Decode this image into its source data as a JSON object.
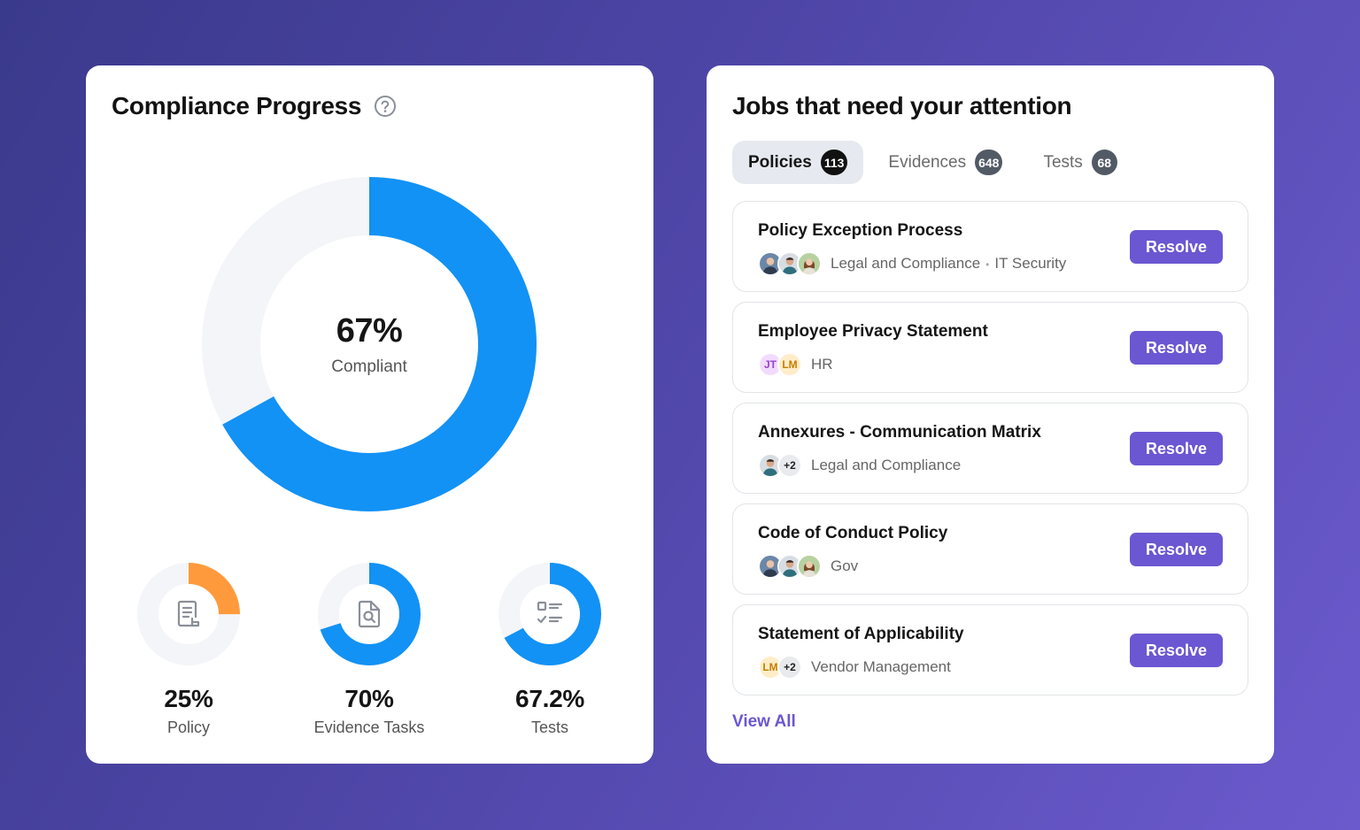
{
  "compliance": {
    "title": "Compliance Progress",
    "help_icon": "question-circle-icon",
    "main": {
      "value": "67%",
      "label": "Compliant",
      "fraction": 0.67,
      "color": "#1292f5",
      "track": "#f4f5f8"
    },
    "metrics": [
      {
        "value": "25%",
        "label": "Policy",
        "fraction": 0.25,
        "color": "#ff9a3c",
        "icon": "document-icon"
      },
      {
        "value": "70%",
        "label": "Evidence Tasks",
        "fraction": 0.7,
        "color": "#1292f5",
        "icon": "file-search-icon"
      },
      {
        "value": "67.2%",
        "label": "Tests",
        "fraction": 0.672,
        "color": "#1292f5",
        "icon": "checklist-icon"
      }
    ]
  },
  "jobs": {
    "title": "Jobs that need your attention",
    "tabs": [
      {
        "label": "Policies",
        "count": "113",
        "active": true
      },
      {
        "label": "Evidences",
        "count": "648",
        "active": false
      },
      {
        "label": "Tests",
        "count": "68",
        "active": false
      }
    ],
    "items": [
      {
        "title": "Policy Exception Process",
        "dept": "Legal and Compliance",
        "dept2": "IT Security",
        "separator": "•",
        "button": "Resolve"
      },
      {
        "title": "Employee Privacy Statement",
        "dept": "HR",
        "av1": "JT",
        "av2": "LM",
        "button": "Resolve"
      },
      {
        "title": "Annexures - Communication Matrix",
        "dept": "Legal and Compliance",
        "more": "+2",
        "button": "Resolve"
      },
      {
        "title": "Code of Conduct Policy",
        "dept": "Gov",
        "button": "Resolve"
      },
      {
        "title": "Statement of Applicability",
        "dept": "Vendor Management",
        "av1": "LM",
        "more": "+2",
        "button": "Resolve"
      }
    ],
    "view_all": "View All",
    "accent": "#6b57d2"
  }
}
